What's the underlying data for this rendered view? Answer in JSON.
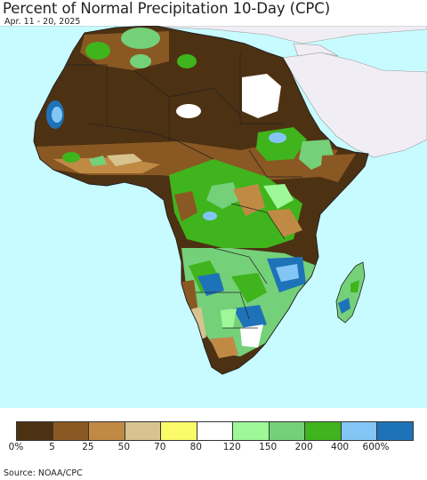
{
  "title": "Percent of Normal Precipitation 10-Day (CPC)",
  "subtitle": "Apr. 11 - 20, 2025",
  "source": "Source: NOAA/CPC",
  "colors": {
    "ocean": "#c8fbff",
    "other_land": "#f0eef4",
    "border": "#222222"
  },
  "legend": {
    "swatches": [
      "#4d3113",
      "#8a5823",
      "#c08a45",
      "#d6c38f",
      "#fbfb6a",
      "#ffffff",
      "#9ef898",
      "#75d07a",
      "#3fb41c",
      "#83c6f5",
      "#1e73b8"
    ],
    "labels": [
      "0%",
      "5",
      "25",
      "50",
      "70",
      "80",
      "120",
      "150",
      "200",
      "400",
      "600%"
    ]
  }
}
